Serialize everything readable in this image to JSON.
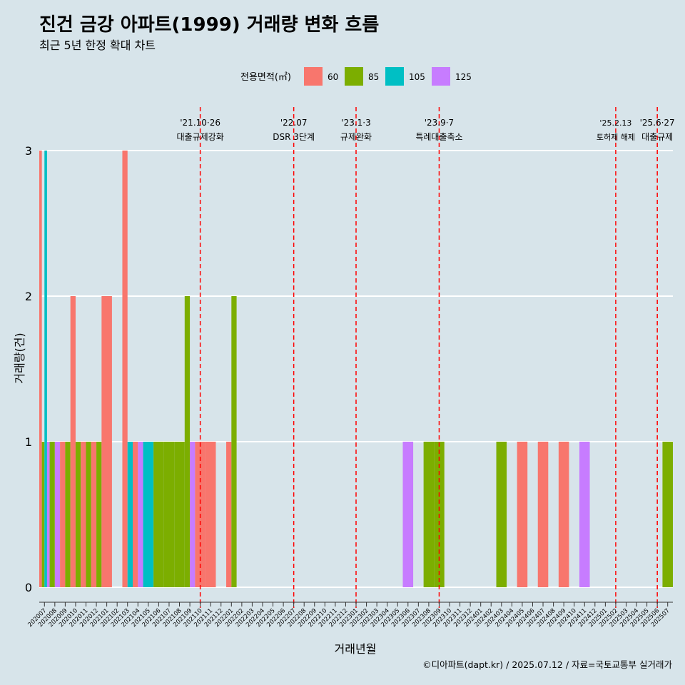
{
  "title": "진건 금강 아파트(1999) 거래량 변화 흐름",
  "subtitle": "최근 5년 한정 확대 차트",
  "caption": "©디아파트(dapt.kr) / 2025.07.12 / 자료=국토교통부 실거래가",
  "legend": {
    "title": "전용면적(㎡)",
    "placement": "top",
    "items": [
      {
        "label": "60",
        "color": "#F8766D"
      },
      {
        "label": "85",
        "color": "#7CAE00"
      },
      {
        "label": "105",
        "color": "#00BFC4"
      },
      {
        "label": "125",
        "color": "#C77CFF"
      }
    ]
  },
  "chart_data": {
    "type": "bar",
    "xlabel": "거래년월",
    "ylabel": "거래량(건)",
    "ylim": [
      0,
      3
    ],
    "yticks": [
      0,
      1,
      2,
      3
    ],
    "grid": "horizontal major lines",
    "categories": [
      "202007",
      "202008",
      "202009",
      "202010",
      "202011",
      "202012",
      "202101",
      "202102",
      "202103",
      "202104",
      "202105",
      "202106",
      "202107",
      "202108",
      "202109",
      "202110",
      "202111",
      "202112",
      "202201",
      "202202",
      "202203",
      "202204",
      "202205",
      "202206",
      "202207",
      "202208",
      "202209",
      "202210",
      "202211",
      "202212",
      "202301",
      "202302",
      "202303",
      "202304",
      "202305",
      "202306",
      "202307",
      "202308",
      "202309",
      "202310",
      "202311",
      "202312",
      "202401",
      "202402",
      "202403",
      "202404",
      "202405",
      "202406",
      "202407",
      "202408",
      "202409",
      "202410",
      "202411",
      "202412",
      "202501",
      "202502",
      "202503",
      "202504",
      "202505",
      "202506",
      "202507"
    ],
    "series": [
      {
        "name": "60",
        "color": "#F8766D",
        "values": [
          3,
          0,
          1,
          2,
          1,
          1,
          2,
          0,
          3,
          1,
          0,
          0,
          0,
          0,
          0,
          1,
          1,
          0,
          1,
          0,
          0,
          0,
          0,
          0,
          0,
          0,
          0,
          0,
          0,
          0,
          0,
          0,
          0,
          0,
          0,
          0,
          0,
          0,
          0,
          0,
          0,
          0,
          0,
          0,
          0,
          0,
          1,
          0,
          1,
          0,
          1,
          0,
          0,
          0,
          0,
          0,
          0,
          0,
          0,
          0,
          0
        ]
      },
      {
        "name": "85",
        "color": "#7CAE00",
        "values": [
          1,
          1,
          1,
          1,
          1,
          1,
          0,
          0,
          0,
          0,
          0,
          1,
          1,
          1,
          2,
          0,
          0,
          0,
          2,
          0,
          0,
          0,
          0,
          0,
          0,
          0,
          0,
          0,
          0,
          0,
          0,
          0,
          0,
          0,
          0,
          0,
          0,
          1,
          1,
          0,
          0,
          0,
          0,
          0,
          1,
          0,
          0,
          0,
          0,
          0,
          0,
          0,
          0,
          0,
          0,
          0,
          0,
          0,
          0,
          0,
          1
        ]
      },
      {
        "name": "105",
        "color": "#00BFC4",
        "values": [
          3,
          0,
          0,
          0,
          0,
          0,
          0,
          0,
          1,
          0,
          1,
          0,
          0,
          0,
          0,
          0,
          0,
          0,
          0,
          0,
          0,
          0,
          0,
          0,
          0,
          0,
          0,
          0,
          0,
          0,
          0,
          0,
          0,
          0,
          0,
          0,
          0,
          0,
          0,
          0,
          0,
          0,
          0,
          0,
          0,
          0,
          0,
          0,
          0,
          0,
          0,
          0,
          0,
          0,
          0,
          0,
          0,
          0,
          0,
          0,
          0
        ]
      },
      {
        "name": "125",
        "color": "#C77CFF",
        "values": [
          1,
          1,
          0,
          0,
          0,
          0,
          0,
          0,
          0,
          1,
          0,
          0,
          0,
          0,
          1,
          0,
          0,
          0,
          0,
          0,
          0,
          0,
          0,
          0,
          0,
          0,
          0,
          0,
          0,
          0,
          0,
          0,
          0,
          0,
          0,
          1,
          0,
          0,
          0,
          0,
          0,
          0,
          0,
          0,
          0,
          0,
          0,
          0,
          0,
          0,
          0,
          0,
          1,
          0,
          0,
          0,
          0,
          0,
          0,
          0,
          0
        ]
      }
    ],
    "annotations": [
      {
        "x": "202110",
        "date": "'21.10·26",
        "label": "대출규제강화"
      },
      {
        "x": "202207",
        "date": "'22.07",
        "label": "DSR 3단계"
      },
      {
        "x": "202301",
        "date": "'23.1·3",
        "label": "규제완화"
      },
      {
        "x": "202309",
        "date": "'23.9·7",
        "label": "특례대출축소"
      },
      {
        "x": "202502",
        "date": "'25.2.13",
        "label": "토허제 해제"
      },
      {
        "x": "202506",
        "date": "'25.6·27",
        "label": "대출규제"
      }
    ]
  }
}
